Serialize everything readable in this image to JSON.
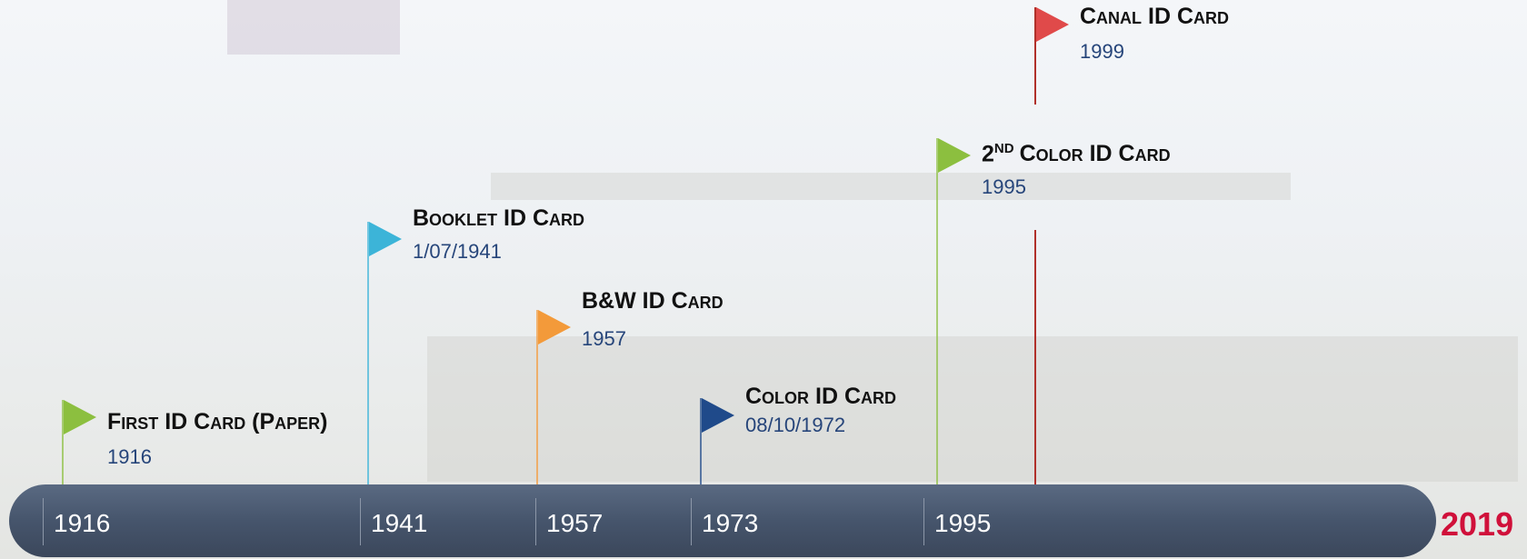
{
  "timeline": {
    "ticks": [
      "1916",
      "1941",
      "1957",
      "1973",
      "1995"
    ],
    "end_label": "2019",
    "events": [
      {
        "title": "First ID Card (Paper)",
        "date": "1916"
      },
      {
        "title": "Booklet ID Card",
        "date": "1/07/1941"
      },
      {
        "title": "B&W ID Card",
        "date": "1957"
      },
      {
        "title": "Color ID Card",
        "date": "08/10/1972"
      },
      {
        "title_number": "2",
        "title_superscript": "nd",
        "title": "Color ID Card",
        "date": "1995"
      },
      {
        "title": "Canal ID Card",
        "date": "1999"
      }
    ]
  }
}
